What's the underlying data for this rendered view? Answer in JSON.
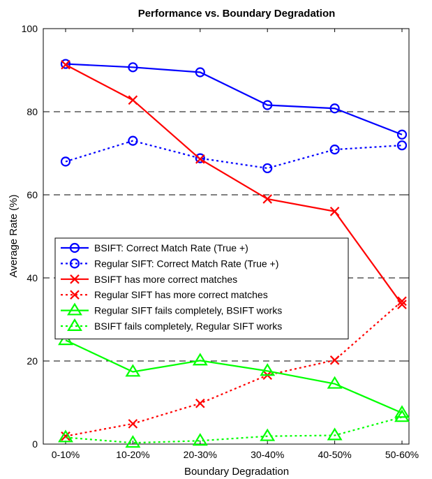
{
  "chart_data": {
    "type": "line",
    "title": "Performance vs. Boundary Degradation",
    "xlabel": "Boundary Degradation",
    "ylabel": "Average Rate (%)",
    "categories": [
      "0-10%",
      "10-20%",
      "20-30%",
      "30-40%",
      "40-50%",
      "50-60%"
    ],
    "ylim": [
      0,
      100
    ],
    "yticks": [
      0,
      20,
      40,
      60,
      80,
      100
    ],
    "grid": "horizontal dashed at 20, 40, 60, 80",
    "legend_position": "center-left",
    "series": [
      {
        "name": "BSIFT: Correct Match Rate (True +)",
        "values": [
          91.5,
          90.7,
          89.5,
          81.6,
          80.8,
          74.5
        ],
        "color": "#0000ff",
        "line": "solid",
        "marker": "circle"
      },
      {
        "name": "Regular SIFT: Correct Match Rate (True +)",
        "values": [
          68.0,
          73.0,
          68.8,
          66.4,
          70.9,
          71.9
        ],
        "color": "#0000ff",
        "line": "dotted",
        "marker": "circle"
      },
      {
        "name": "BSIFT has more correct matches",
        "values": [
          91.3,
          82.8,
          68.6,
          59.0,
          56.0,
          33.6
        ],
        "color": "#ff0000",
        "line": "solid",
        "marker": "x"
      },
      {
        "name": "Regular SIFT has more correct matches",
        "values": [
          1.9,
          4.9,
          9.8,
          16.6,
          20.2,
          34.4
        ],
        "color": "#ff0000",
        "line": "dotted",
        "marker": "x"
      },
      {
        "name": "Regular SIFT fails completely, BSIFT works",
        "values": [
          25.0,
          17.4,
          20.1,
          17.6,
          14.5,
          7.5
        ],
        "color": "#00ff00",
        "line": "solid",
        "marker": "triangle"
      },
      {
        "name": "BSIFT fails completely, Regular SIFT works",
        "values": [
          1.6,
          0.3,
          0.8,
          1.9,
          2.1,
          6.5
        ],
        "color": "#00ff00",
        "line": "dotted",
        "marker": "triangle"
      }
    ]
  }
}
